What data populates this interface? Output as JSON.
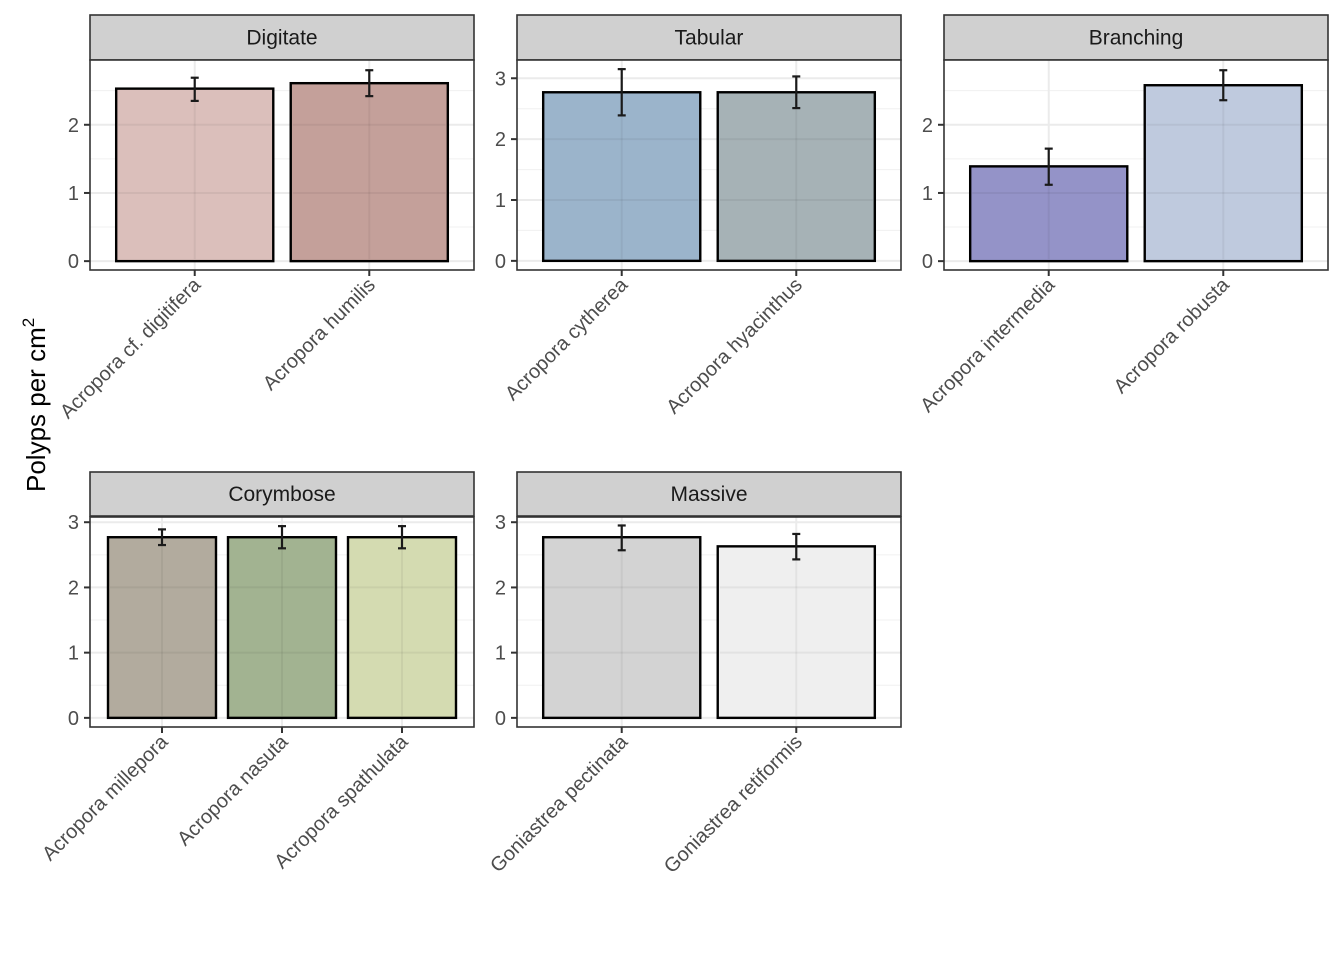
{
  "chart_data": {
    "type": "bar",
    "ylabel": "Polyps per cm",
    "ylabel_superscript": "2",
    "error_bars": true,
    "grid": true,
    "theme": "bw facet_wrap",
    "panels": [
      {
        "title": "Digitate",
        "categories": [
          "Acropora cf. digitifera",
          "Acropora humilis"
        ],
        "values": [
          2.53,
          2.61
        ],
        "error_low": [
          2.35,
          2.42
        ],
        "error_high": [
          2.69,
          2.8
        ],
        "colors": [
          "#dbbfbb",
          "#c4a09a"
        ],
        "ylim": [
          -0.13,
          2.95
        ],
        "yticks": [
          0,
          1,
          2
        ]
      },
      {
        "title": "Tabular",
        "categories": [
          "Acropora cytherea",
          "Acropora hyacinthus"
        ],
        "values": [
          2.77,
          2.77
        ],
        "error_low": [
          2.39,
          2.51
        ],
        "error_high": [
          3.15,
          3.03
        ],
        "colors": [
          "#9bb4cb",
          "#a6b2b6"
        ],
        "ylim": [
          -0.15,
          3.3
        ],
        "yticks": [
          0,
          1,
          2,
          3
        ]
      },
      {
        "title": "Branching",
        "categories": [
          "Acropora intermedia",
          "Acropora robusta"
        ],
        "values": [
          1.39,
          2.58
        ],
        "error_low": [
          1.12,
          2.36
        ],
        "error_high": [
          1.65,
          2.8
        ],
        "colors": [
          "#9493c8",
          "#bfcade"
        ],
        "ylim": [
          -0.13,
          2.95
        ],
        "yticks": [
          0,
          1,
          2
        ]
      },
      {
        "title": "Corymbose",
        "categories": [
          "Acropora millepora",
          "Acropora nasuta",
          "Acropora spathulata"
        ],
        "values": [
          2.77,
          2.77,
          2.77
        ],
        "error_low": [
          2.65,
          2.6,
          2.6
        ],
        "error_high": [
          2.89,
          2.94,
          2.94
        ],
        "colors": [
          "#b2ab9e",
          "#a2b391",
          "#d4dbb1"
        ],
        "ylim": [
          -0.14,
          3.08
        ],
        "yticks": [
          0,
          1,
          2,
          3
        ]
      },
      {
        "title": "Massive",
        "categories": [
          "Goniastrea pectinata",
          "Goniastrea retiformis"
        ],
        "values": [
          2.77,
          2.63
        ],
        "error_low": [
          2.57,
          2.43
        ],
        "error_high": [
          2.95,
          2.82
        ],
        "colors": [
          "#d3d3d3",
          "#efefef"
        ],
        "ylim": [
          -0.14,
          3.08
        ],
        "yticks": [
          0,
          1,
          2,
          3
        ]
      }
    ]
  }
}
